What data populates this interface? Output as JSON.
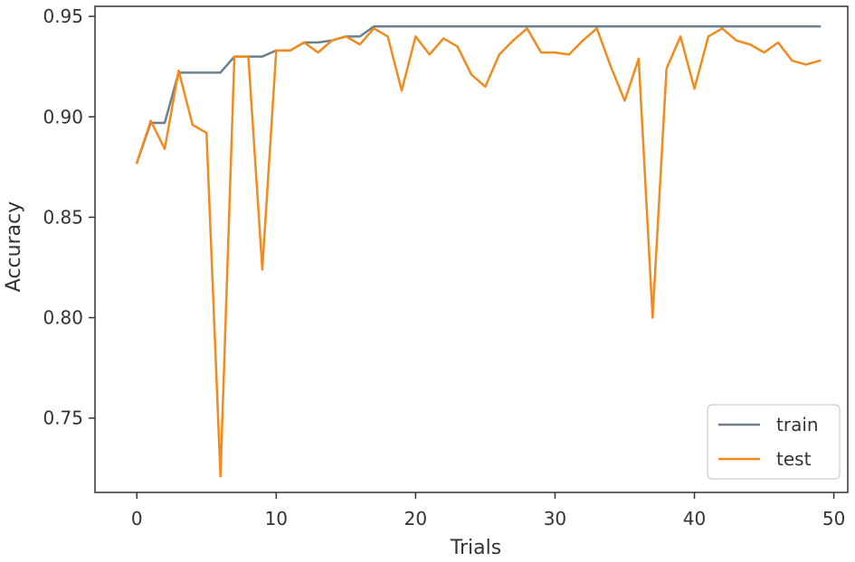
{
  "chart_data": {
    "type": "line",
    "title": "",
    "xlabel": "Trials",
    "ylabel": "Accuracy",
    "xlim": [
      -3,
      51
    ],
    "ylim": [
      0.713,
      0.955
    ],
    "xticks": [
      0,
      10,
      20,
      30,
      40,
      50
    ],
    "xtick_labels": [
      "0",
      "10",
      "20",
      "30",
      "40",
      "50"
    ],
    "yticks": [
      0.75,
      0.8,
      0.85,
      0.9,
      0.95
    ],
    "ytick_labels": [
      "0.75",
      "0.80",
      "0.85",
      "0.90",
      "0.95"
    ],
    "grid": false,
    "legend": {
      "position": "lower-right",
      "entries": [
        "train",
        "test"
      ]
    },
    "x": [
      0,
      1,
      2,
      3,
      4,
      5,
      6,
      7,
      8,
      9,
      10,
      11,
      12,
      13,
      14,
      15,
      16,
      17,
      18,
      19,
      20,
      21,
      22,
      23,
      24,
      25,
      26,
      27,
      28,
      29,
      30,
      31,
      32,
      33,
      34,
      35,
      36,
      37,
      38,
      39,
      40,
      41,
      42,
      43,
      44,
      45,
      46,
      47,
      48,
      49
    ],
    "series": [
      {
        "name": "train",
        "color": "#6b7f8f",
        "values": [
          0.877,
          0.897,
          0.897,
          0.922,
          0.922,
          0.922,
          0.922,
          0.93,
          0.93,
          0.93,
          0.933,
          0.933,
          0.937,
          0.937,
          0.938,
          0.94,
          0.94,
          0.945,
          0.945,
          0.945,
          0.945,
          0.945,
          0.945,
          0.945,
          0.945,
          0.945,
          0.945,
          0.945,
          0.945,
          0.945,
          0.945,
          0.945,
          0.945,
          0.945,
          0.945,
          0.945,
          0.945,
          0.945,
          0.945,
          0.945,
          0.945,
          0.945,
          0.945,
          0.945,
          0.945,
          0.945,
          0.945,
          0.945,
          0.945,
          0.945
        ]
      },
      {
        "name": "test",
        "color": "#f28a1e",
        "values": [
          0.877,
          0.898,
          0.884,
          0.923,
          0.896,
          0.892,
          0.721,
          0.93,
          0.93,
          0.824,
          0.933,
          0.933,
          0.937,
          0.932,
          0.938,
          0.94,
          0.936,
          0.944,
          0.94,
          0.913,
          0.94,
          0.931,
          0.939,
          0.935,
          0.921,
          0.915,
          0.931,
          0.938,
          0.944,
          0.932,
          0.932,
          0.931,
          0.938,
          0.944,
          0.925,
          0.908,
          0.929,
          0.8,
          0.924,
          0.94,
          0.914,
          0.94,
          0.944,
          0.938,
          0.936,
          0.932,
          0.937,
          0.928,
          0.926,
          0.928
        ]
      }
    ]
  }
}
